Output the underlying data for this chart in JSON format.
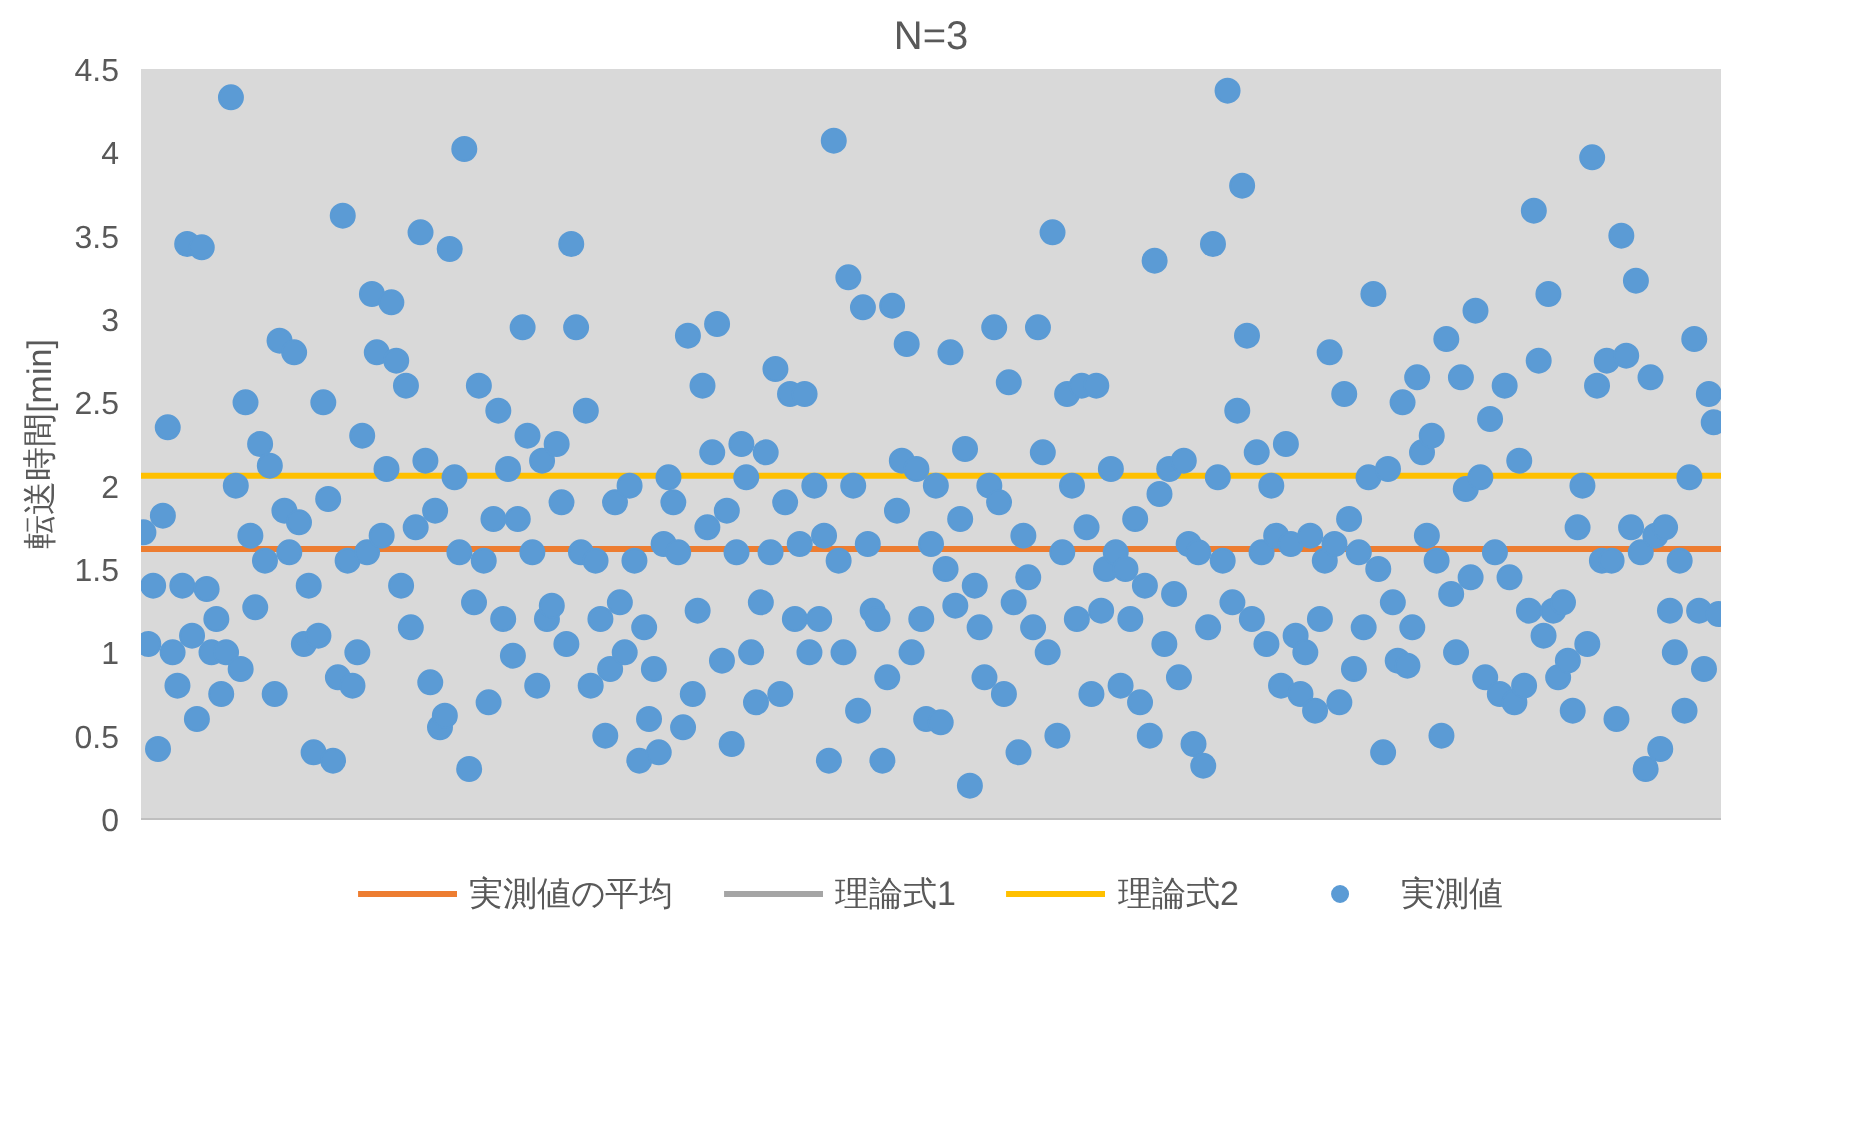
{
  "chart_data": {
    "type": "scatter",
    "title": "N=3",
    "ylabel": "転送時間[min]",
    "categories": [
      null,
      null,
      null,
      null,
      null,
      null,
      null,
      null,
      null,
      null,
      null,
      null,
      null,
      null,
      null,
      null,
      null,
      null,
      null,
      null,
      null,
      null,
      null,
      null,
      null,
      null,
      null,
      null,
      null,
      null,
      null,
      null,
      null,
      null,
      null,
      null,
      null,
      null,
      null,
      null,
      null,
      null,
      null,
      null,
      null,
      null,
      null,
      null,
      null,
      null,
      null,
      null,
      null,
      null,
      null,
      null,
      null,
      null,
      null,
      null,
      null,
      null,
      null,
      null,
      null,
      null,
      null,
      null,
      null,
      null,
      null,
      null,
      null,
      null,
      null,
      null,
      null,
      null,
      null,
      null,
      null,
      null,
      null,
      null,
      null,
      null,
      null,
      null,
      null,
      null,
      null,
      null,
      null,
      null,
      null,
      null,
      null,
      null,
      null,
      null,
      null,
      null,
      null,
      null,
      null,
      null,
      null,
      null,
      null,
      null,
      null,
      null,
      null,
      null,
      null,
      null,
      null,
      null,
      null,
      null,
      null,
      null,
      null,
      null,
      null,
      null,
      null,
      null,
      null,
      null,
      null,
      null,
      null,
      null,
      null,
      null,
      null,
      null,
      null,
      null,
      null,
      null,
      null,
      null,
      null,
      null,
      null,
      null,
      null,
      null,
      null,
      null,
      null,
      null,
      null,
      null,
      null,
      null,
      null,
      null,
      null,
      null,
      null,
      null,
      null,
      null,
      null,
      null,
      null,
      null,
      null,
      null,
      null,
      null,
      null,
      null,
      null,
      null,
      null,
      null,
      null,
      null,
      null,
      null,
      null,
      null,
      null,
      null,
      null,
      null,
      null,
      null,
      null,
      null,
      null,
      null,
      null,
      null,
      null,
      null,
      null,
      null,
      null,
      null,
      null,
      null,
      null,
      null,
      null,
      null,
      null,
      null,
      null,
      null,
      null,
      null,
      null,
      null,
      null,
      null,
      null,
      null,
      null,
      null,
      null,
      null,
      null,
      null,
      null,
      null,
      null,
      null,
      null,
      null,
      null,
      null,
      null,
      null,
      null,
      null,
      null,
      null,
      null,
      null,
      null,
      null,
      null,
      null,
      null,
      null,
      null,
      null,
      null,
      null,
      null,
      null,
      null,
      null,
      null,
      null,
      null,
      null,
      null,
      null,
      null,
      null,
      null,
      null,
      null,
      null,
      null,
      null,
      null,
      null,
      null,
      null,
      null,
      null,
      null,
      null,
      null,
      null,
      null,
      null,
      null,
      null,
      null,
      null,
      null,
      null,
      null,
      null,
      null,
      null,
      null,
      null,
      null,
      null,
      null,
      null,
      null,
      null,
      null,
      null,
      null,
      null,
      null,
      null,
      null,
      null,
      null,
      null,
      null,
      null,
      null,
      null,
      null,
      null,
      null,
      null,
      null,
      null,
      null,
      null,
      null
    ],
    "series": [
      {
        "name": "実測値",
        "color": "#5b9bd5",
        "values": [
          1.72,
          1.05,
          1.4,
          0.42,
          1.82,
          2.35,
          1.0,
          0.8,
          1.4,
          3.45,
          1.1,
          0.6,
          3.43,
          1.38,
          1.0,
          1.2,
          0.75,
          1.0,
          4.33,
          2.0,
          0.9,
          2.5,
          1.7,
          1.27,
          2.25,
          1.55,
          2.12,
          0.75,
          2.87,
          1.85,
          1.6,
          2.8,
          1.78,
          1.05,
          1.4,
          0.4,
          1.1,
          2.5,
          1.92,
          0.35,
          0.85,
          3.62,
          1.55,
          0.8,
          1.0,
          2.3,
          1.6,
          3.15,
          2.8,
          1.7,
          2.1,
          3.1,
          2.75,
          1.4,
          2.6,
          1.15,
          1.75,
          3.52,
          2.15,
          0.82,
          1.85,
          0.55,
          0.62,
          3.42,
          2.05,
          1.6,
          4.02,
          0.3,
          1.3,
          2.6,
          1.55,
          0.7,
          1.8,
          2.45,
          1.2,
          2.1,
          0.98,
          1.8,
          2.95,
          2.3,
          1.6,
          0.8,
          2.15,
          1.2,
          1.28,
          2.25,
          1.9,
          1.05,
          3.45,
          2.95,
          1.6,
          2.45,
          0.8,
          1.55,
          1.2,
          0.5,
          0.9,
          1.9,
          1.3,
          1.0,
          2.0,
          1.55,
          0.35,
          1.15,
          0.6,
          0.9,
          0.4,
          1.65,
          2.05,
          1.9,
          1.6,
          0.55,
          2.9,
          0.75,
          1.25,
          2.6,
          1.75,
          2.2,
          2.97,
          0.95,
          1.85,
          0.45,
          1.6,
          2.25,
          2.05,
          1.0,
          0.7,
          1.3,
          2.2,
          1.6,
          2.7,
          0.75,
          1.9,
          2.55,
          1.2,
          1.65,
          2.55,
          1.0,
          2.0,
          1.2,
          1.7,
          0.35,
          4.07,
          1.55,
          1.0,
          3.25,
          2.0,
          0.65,
          3.07,
          1.65,
          1.25,
          1.2,
          0.35,
          0.85,
          3.08,
          1.85,
          2.15,
          2.85,
          1.0,
          2.1,
          1.2,
          0.6,
          1.65,
          2.0,
          0.58,
          1.5,
          2.8,
          1.28,
          1.8,
          2.22,
          0.2,
          1.4,
          1.15,
          0.85,
          2.0,
          2.95,
          1.9,
          0.75,
          2.62,
          1.3,
          0.4,
          1.7,
          1.45,
          1.15,
          2.95,
          2.2,
          1.0,
          3.52,
          0.5,
          1.6,
          2.55,
          2.0,
          1.2,
          2.6,
          1.75,
          0.75,
          2.6,
          1.25,
          1.5,
          2.1,
          1.6,
          0.8,
          1.5,
          1.2,
          1.8,
          0.7,
          1.4,
          0.5,
          3.35,
          1.95,
          1.05,
          2.1,
          1.35,
          0.85,
          2.15,
          1.65,
          0.45,
          1.6,
          0.32,
          1.15,
          3.45,
          2.05,
          1.55,
          4.37,
          1.3,
          2.45,
          3.8,
          2.9,
          1.2,
          2.2,
          1.6,
          1.05,
          2.0,
          1.7,
          0.8,
          2.25,
          1.65,
          1.1,
          0.75,
          1.0,
          1.7,
          0.65,
          1.2,
          1.55,
          2.8,
          1.65,
          0.7,
          2.55,
          1.8,
          0.9,
          1.6,
          1.15,
          2.05,
          3.15,
          1.5,
          0.4,
          2.1,
          1.3,
          0.95,
          2.5,
          0.92,
          1.15,
          2.65,
          2.2,
          1.7,
          2.3,
          1.55,
          0.5,
          2.88,
          1.35,
          1.0,
          2.65,
          1.98,
          1.45,
          3.05,
          2.05,
          0.85,
          2.4,
          1.6,
          0.75,
          2.6,
          1.45,
          0.7,
          2.15,
          0.8,
          1.25,
          3.65,
          2.75,
          1.1,
          3.15,
          1.25,
          0.85,
          1.3,
          0.95,
          0.65,
          1.75,
          2.0,
          1.05,
          3.97,
          2.6,
          1.55,
          2.75,
          1.55,
          0.6,
          3.5,
          2.78,
          1.75,
          3.23,
          1.6,
          0.3,
          2.65,
          1.7,
          0.42,
          1.75,
          1.25,
          1.0,
          1.55,
          0.65,
          2.05,
          2.88,
          1.25,
          0.9,
          2.55,
          2.38,
          1.23
        ]
      }
    ],
    "ref_lines": [
      {
        "axis": "y",
        "value": 1.62,
        "label": "実測値の平均",
        "color": "#ed7d31"
      },
      {
        "axis": "y",
        "value": null,
        "label": "理論式1",
        "color": "#a5a5a5"
      },
      {
        "axis": "y",
        "value": 2.06,
        "label": "理論式2",
        "color": "#ffc000"
      }
    ],
    "ylim": [
      0,
      4.5
    ],
    "yticks": [
      0,
      0.5,
      1,
      1.5,
      2,
      2.5,
      3,
      3.5,
      4,
      4.5
    ],
    "tick_labels": "y",
    "grid": false,
    "legend": "bottom",
    "marker": "circle"
  }
}
